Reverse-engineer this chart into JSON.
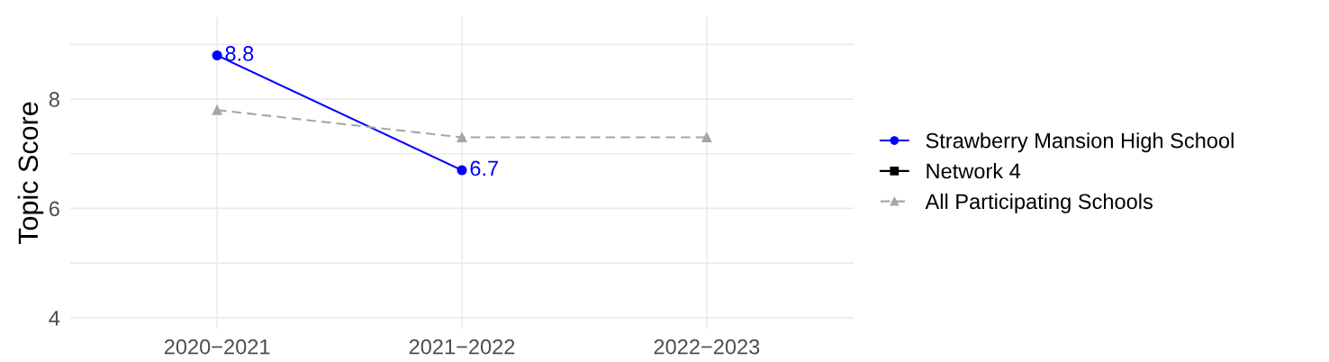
{
  "chart_data": {
    "type": "line",
    "ylabel": "Topic Score",
    "categories": [
      "2020−2021",
      "2021−2022",
      "2022−2023"
    ],
    "series": [
      {
        "name": "Strawberry Mansion High School",
        "color": "#0000ff",
        "values": [
          8.8,
          6.7,
          null
        ],
        "value_labels": [
          "8.8",
          "6.7",
          null
        ],
        "marker": "circle",
        "line_style": "solid"
      },
      {
        "name": "Network 4",
        "color": "#000000",
        "values": [
          null,
          null,
          null
        ],
        "marker": "square",
        "line_style": "solid"
      },
      {
        "name": "All Participating Schools",
        "color": "#a6a6a6",
        "values": [
          7.8,
          7.3,
          7.3
        ],
        "marker": "triangle",
        "line_style": "dashed"
      }
    ],
    "ylim": [
      3.8,
      9.5
    ],
    "yticks": [
      4,
      {
        "value": 5,
        "label": null
      },
      6,
      {
        "value": 7,
        "label": null
      },
      8,
      {
        "value": 9,
        "label": null
      }
    ],
    "grid": true,
    "legend": "right"
  }
}
